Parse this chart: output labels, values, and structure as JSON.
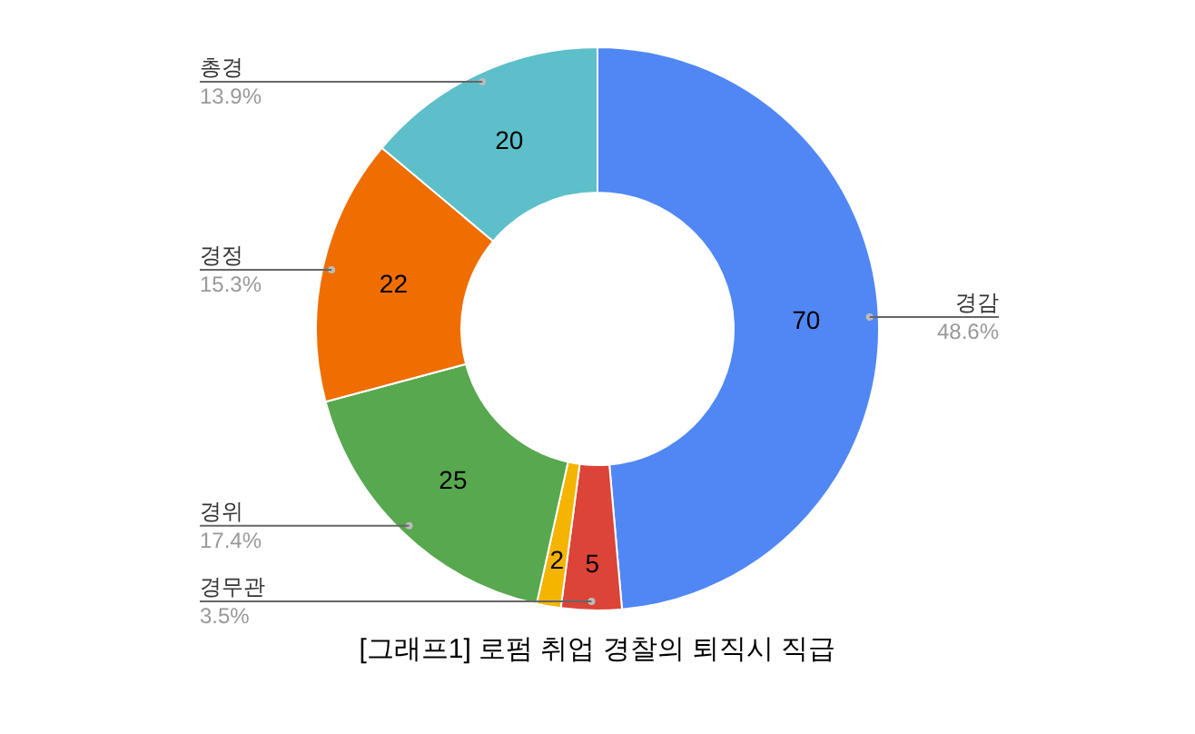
{
  "chart_data": {
    "type": "donut",
    "title": "[그래프1]  로펌 취업 경찰의 퇴직시 직급",
    "categories": [
      "경감",
      "경무관",
      null,
      "경위",
      "경정",
      "총경"
    ],
    "values": [
      70,
      5,
      2,
      25,
      22,
      20
    ],
    "colors": [
      "#5087f5",
      "#db4437",
      "#f4b400",
      "#57a84f",
      "#f06d00",
      "#5dbfc9"
    ],
    "data_labels": true,
    "annotations": [
      {
        "text": "48.6%",
        "x": "경감"
      },
      {
        "text": "3.5%",
        "x": "경무관"
      },
      {
        "text": "17.4%",
        "x": "경위"
      },
      {
        "text": "15.3%",
        "x": "경정"
      },
      {
        "text": "13.9%",
        "x": "총경"
      }
    ]
  }
}
